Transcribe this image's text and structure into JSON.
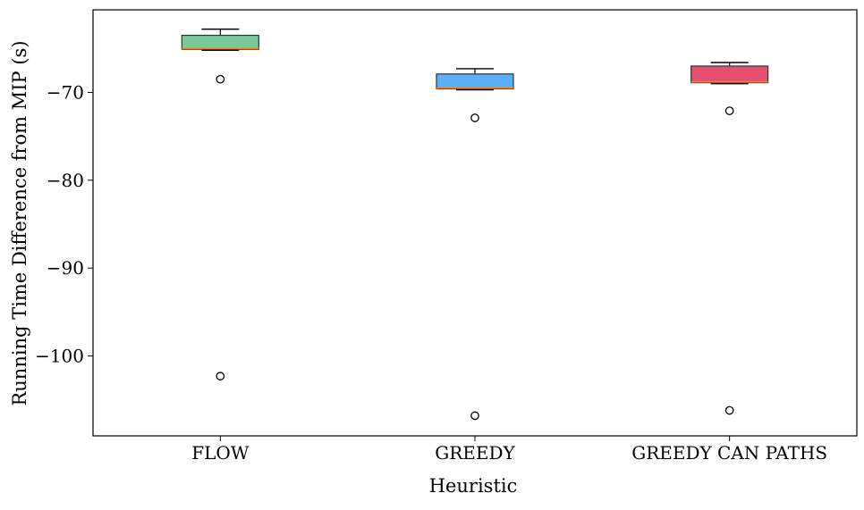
{
  "chart_data": {
    "type": "box",
    "title": "",
    "xlabel": "Heuristic",
    "ylabel": "Running Time Difference from MIP (s)",
    "ylim": [
      -109.1,
      -60.6
    ],
    "yticks": [
      -100,
      -90,
      -80,
      -70
    ],
    "grid": false,
    "categories": [
      "FLOW",
      "GREEDY",
      "GREEDY_CAN_PATHS"
    ],
    "category_labels": [
      "FLOW",
      "GREEDY",
      "GREEDY CAN PATHS"
    ],
    "boxes": [
      {
        "category": "FLOW",
        "whisker_low": -65.2,
        "q1": -65.1,
        "median": -65.0,
        "q3": -63.5,
        "whisker_high": -62.8,
        "outliers": [
          -68.5,
          -102.3
        ],
        "color": "#78c89a"
      },
      {
        "category": "GREEDY",
        "whisker_low": -69.7,
        "q1": -69.6,
        "median": -69.5,
        "q3": -67.9,
        "whisker_high": -67.3,
        "outliers": [
          -72.9,
          -106.8
        ],
        "color": "#5aaefa"
      },
      {
        "category": "GREEDY_CAN_PATHS",
        "whisker_low": -69.0,
        "q1": -68.9,
        "median": -68.8,
        "q3": -67.0,
        "whisker_high": -66.6,
        "outliers": [
          -72.1,
          -106.2
        ],
        "color": "#e5506e"
      }
    ],
    "median_color": "#ff7f0e"
  }
}
